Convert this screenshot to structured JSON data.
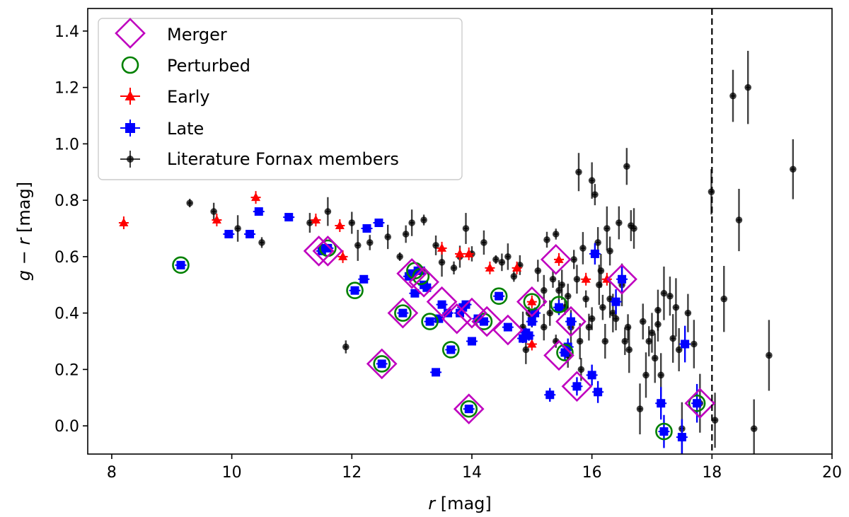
{
  "chart_data": {
    "type": "scatter",
    "xlabel": {
      "italic": "r",
      "rest": " [mag]"
    },
    "ylabel": {
      "italic_g": "g",
      "minus": " − ",
      "italic_r": "r",
      "rest": " [mag]"
    },
    "xlim": [
      7.6,
      20.0
    ],
    "ylim": [
      -0.1,
      1.48
    ],
    "xticks": [
      8,
      10,
      12,
      14,
      16,
      18,
      20
    ],
    "yticks": [
      0.0,
      0.2,
      0.4,
      0.6,
      0.8,
      1.0,
      1.2,
      1.4
    ],
    "xtick_labels": [
      "8",
      "10",
      "12",
      "14",
      "16",
      "18",
      "20"
    ],
    "ytick_labels": [
      "0.0",
      "0.2",
      "0.4",
      "0.6",
      "0.8",
      "1.0",
      "1.2",
      "1.4"
    ],
    "vline": {
      "x": 18.0,
      "style": "dashed",
      "color": "#000000"
    },
    "grid": false,
    "legend_position": "upper-left",
    "legend": [
      {
        "key": "merger",
        "label": "Merger"
      },
      {
        "key": "perturbed",
        "label": "Perturbed"
      },
      {
        "key": "early",
        "label": "Early"
      },
      {
        "key": "late",
        "label": "Late"
      },
      {
        "key": "literature",
        "label": "Literature Fornax members"
      }
    ],
    "colors": {
      "merger": "#bf00bf",
      "perturbed": "#008000",
      "early": "#ff0000",
      "late": "#0000ff",
      "literature": "#000000"
    },
    "series": [
      {
        "key": "literature",
        "points": [
          [
            9.3,
            0.79
          ],
          [
            9.7,
            0.76
          ],
          [
            10.1,
            0.7
          ],
          [
            10.5,
            0.65
          ],
          [
            11.3,
            0.72
          ],
          [
            11.6,
            0.76
          ],
          [
            11.9,
            0.28
          ],
          [
            12.0,
            0.72
          ],
          [
            12.1,
            0.64
          ],
          [
            12.3,
            0.65
          ],
          [
            12.6,
            0.67
          ],
          [
            12.8,
            0.6
          ],
          [
            12.9,
            0.68
          ],
          [
            13.0,
            0.72
          ],
          [
            13.2,
            0.73
          ],
          [
            13.4,
            0.64
          ],
          [
            13.5,
            0.58
          ],
          [
            13.7,
            0.56
          ],
          [
            13.8,
            0.6
          ],
          [
            13.9,
            0.7
          ],
          [
            14.0,
            0.61
          ],
          [
            14.2,
            0.65
          ],
          [
            14.4,
            0.59
          ],
          [
            14.5,
            0.58
          ],
          [
            14.6,
            0.6
          ],
          [
            14.7,
            0.53
          ],
          [
            14.8,
            0.57
          ],
          [
            14.9,
            0.27
          ],
          [
            14.95,
            0.4
          ],
          [
            15.1,
            0.55
          ],
          [
            15.2,
            0.48
          ],
          [
            15.25,
            0.66
          ],
          [
            15.3,
            0.4
          ],
          [
            15.4,
            0.68
          ],
          [
            15.45,
            0.48
          ],
          [
            15.5,
            0.5
          ],
          [
            15.55,
            0.42
          ],
          [
            15.6,
            0.46
          ],
          [
            15.65,
            0.35
          ],
          [
            15.7,
            0.59
          ],
          [
            15.75,
            0.52
          ],
          [
            15.78,
            0.9
          ],
          [
            15.82,
            0.2
          ],
          [
            15.85,
            0.63
          ],
          [
            15.9,
            0.45
          ],
          [
            15.95,
            0.35
          ],
          [
            16.0,
            0.87
          ],
          [
            16.05,
            0.82
          ],
          [
            16.1,
            0.65
          ],
          [
            16.12,
            0.5
          ],
          [
            16.18,
            0.42
          ],
          [
            16.22,
            0.3
          ],
          [
            16.25,
            0.7
          ],
          [
            16.3,
            0.62
          ],
          [
            16.35,
            0.4
          ],
          [
            16.4,
            0.38
          ],
          [
            16.45,
            0.72
          ],
          [
            16.5,
            0.5
          ],
          [
            16.55,
            0.3
          ],
          [
            16.58,
            0.92
          ],
          [
            16.62,
            0.27
          ],
          [
            16.65,
            0.71
          ],
          [
            16.7,
            0.7
          ],
          [
            16.8,
            0.06
          ],
          [
            16.85,
            0.37
          ],
          [
            16.9,
            0.18
          ],
          [
            16.95,
            0.3
          ],
          [
            17.0,
            0.33
          ],
          [
            17.05,
            0.24
          ],
          [
            17.1,
            0.36
          ],
          [
            17.15,
            0.18
          ],
          [
            17.2,
            0.47
          ],
          [
            17.3,
            0.46
          ],
          [
            17.35,
            0.31
          ],
          [
            17.4,
            0.42
          ],
          [
            17.45,
            0.27
          ],
          [
            17.5,
            -0.01
          ],
          [
            17.6,
            0.4
          ],
          [
            17.7,
            0.29
          ],
          [
            17.8,
            0.08
          ],
          [
            17.99,
            0.83
          ],
          [
            18.05,
            0.02
          ],
          [
            18.2,
            0.45
          ],
          [
            18.35,
            1.17
          ],
          [
            18.45,
            0.73
          ],
          [
            18.6,
            1.2
          ],
          [
            18.7,
            -0.01
          ],
          [
            18.95,
            0.25
          ],
          [
            19.35,
            0.91
          ],
          [
            15.0,
            0.38
          ],
          [
            15.2,
            0.35
          ],
          [
            15.4,
            0.3
          ],
          [
            15.6,
            0.25
          ],
          [
            15.8,
            0.3
          ],
          [
            16.0,
            0.38
          ],
          [
            16.15,
            0.55
          ],
          [
            14.85,
            0.35
          ],
          [
            15.35,
            0.52
          ],
          [
            16.3,
            0.45
          ],
          [
            16.6,
            0.35
          ],
          [
            17.1,
            0.41
          ]
        ]
      },
      {
        "key": "early",
        "points": [
          [
            8.2,
            0.72
          ],
          [
            9.75,
            0.73
          ],
          [
            10.4,
            0.81
          ],
          [
            11.4,
            0.73
          ],
          [
            11.8,
            0.71
          ],
          [
            11.85,
            0.6
          ],
          [
            13.5,
            0.63
          ],
          [
            13.8,
            0.61
          ],
          [
            13.95,
            0.61
          ],
          [
            14.3,
            0.56
          ],
          [
            14.75,
            0.56
          ],
          [
            15.0,
            0.29
          ],
          [
            15.0,
            0.44
          ],
          [
            15.45,
            0.59
          ],
          [
            15.9,
            0.52
          ],
          [
            16.25,
            0.52
          ]
        ]
      },
      {
        "key": "late",
        "points": [
          [
            9.15,
            0.57
          ],
          [
            9.95,
            0.68
          ],
          [
            10.3,
            0.68
          ],
          [
            10.45,
            0.76
          ],
          [
            10.95,
            0.74
          ],
          [
            11.5,
            0.62
          ],
          [
            11.55,
            0.63
          ],
          [
            11.6,
            0.63
          ],
          [
            12.05,
            0.48
          ],
          [
            12.2,
            0.52
          ],
          [
            12.25,
            0.7
          ],
          [
            12.45,
            0.72
          ],
          [
            12.5,
            0.22
          ],
          [
            12.85,
            0.4
          ],
          [
            12.95,
            0.53
          ],
          [
            13.0,
            0.54
          ],
          [
            13.05,
            0.47
          ],
          [
            13.1,
            0.55
          ],
          [
            13.15,
            0.55
          ],
          [
            13.2,
            0.5
          ],
          [
            13.25,
            0.49
          ],
          [
            13.3,
            0.37
          ],
          [
            13.4,
            0.19
          ],
          [
            13.45,
            0.38
          ],
          [
            13.5,
            0.43
          ],
          [
            13.6,
            0.4
          ],
          [
            13.65,
            0.27
          ],
          [
            13.8,
            0.4
          ],
          [
            13.85,
            0.42
          ],
          [
            13.9,
            0.43
          ],
          [
            13.95,
            0.06
          ],
          [
            14.0,
            0.3
          ],
          [
            14.1,
            0.38
          ],
          [
            14.2,
            0.37
          ],
          [
            14.45,
            0.46
          ],
          [
            14.6,
            0.35
          ],
          [
            14.85,
            0.31
          ],
          [
            14.9,
            0.33
          ],
          [
            14.95,
            0.32
          ],
          [
            15.0,
            0.37
          ],
          [
            15.05,
            0.4
          ],
          [
            15.3,
            0.11
          ],
          [
            15.45,
            0.42
          ],
          [
            15.55,
            0.26
          ],
          [
            15.6,
            0.28
          ],
          [
            15.65,
            0.37
          ],
          [
            15.75,
            0.14
          ],
          [
            16.0,
            0.18
          ],
          [
            16.05,
            0.61
          ],
          [
            16.1,
            0.12
          ],
          [
            16.4,
            0.44
          ],
          [
            16.5,
            0.52
          ],
          [
            17.15,
            0.08
          ],
          [
            17.2,
            -0.02
          ],
          [
            17.5,
            -0.04
          ],
          [
            17.55,
            0.29
          ],
          [
            17.75,
            0.08
          ]
        ]
      },
      {
        "key": "perturbed",
        "points": [
          [
            9.15,
            0.57
          ],
          [
            11.6,
            0.63
          ],
          [
            12.05,
            0.48
          ],
          [
            12.5,
            0.22
          ],
          [
            12.85,
            0.4
          ],
          [
            13.05,
            0.55
          ],
          [
            13.15,
            0.53
          ],
          [
            13.3,
            0.37
          ],
          [
            13.65,
            0.27
          ],
          [
            13.95,
            0.06
          ],
          [
            14.2,
            0.37
          ],
          [
            14.45,
            0.46
          ],
          [
            15.0,
            0.44
          ],
          [
            15.45,
            0.43
          ],
          [
            15.55,
            0.26
          ],
          [
            17.2,
            -0.02
          ],
          [
            17.75,
            0.08
          ]
        ]
      },
      {
        "key": "merger",
        "points": [
          [
            11.45,
            0.62
          ],
          [
            11.6,
            0.62
          ],
          [
            12.5,
            0.22
          ],
          [
            12.85,
            0.4
          ],
          [
            13.0,
            0.54
          ],
          [
            13.2,
            0.51
          ],
          [
            13.5,
            0.44
          ],
          [
            13.75,
            0.38
          ],
          [
            13.95,
            0.06
          ],
          [
            14.0,
            0.4
          ],
          [
            14.25,
            0.37
          ],
          [
            14.6,
            0.34
          ],
          [
            15.0,
            0.44
          ],
          [
            15.4,
            0.59
          ],
          [
            15.45,
            0.25
          ],
          [
            15.65,
            0.37
          ],
          [
            15.75,
            0.14
          ],
          [
            16.5,
            0.52
          ],
          [
            17.8,
            0.08
          ]
        ]
      }
    ]
  }
}
